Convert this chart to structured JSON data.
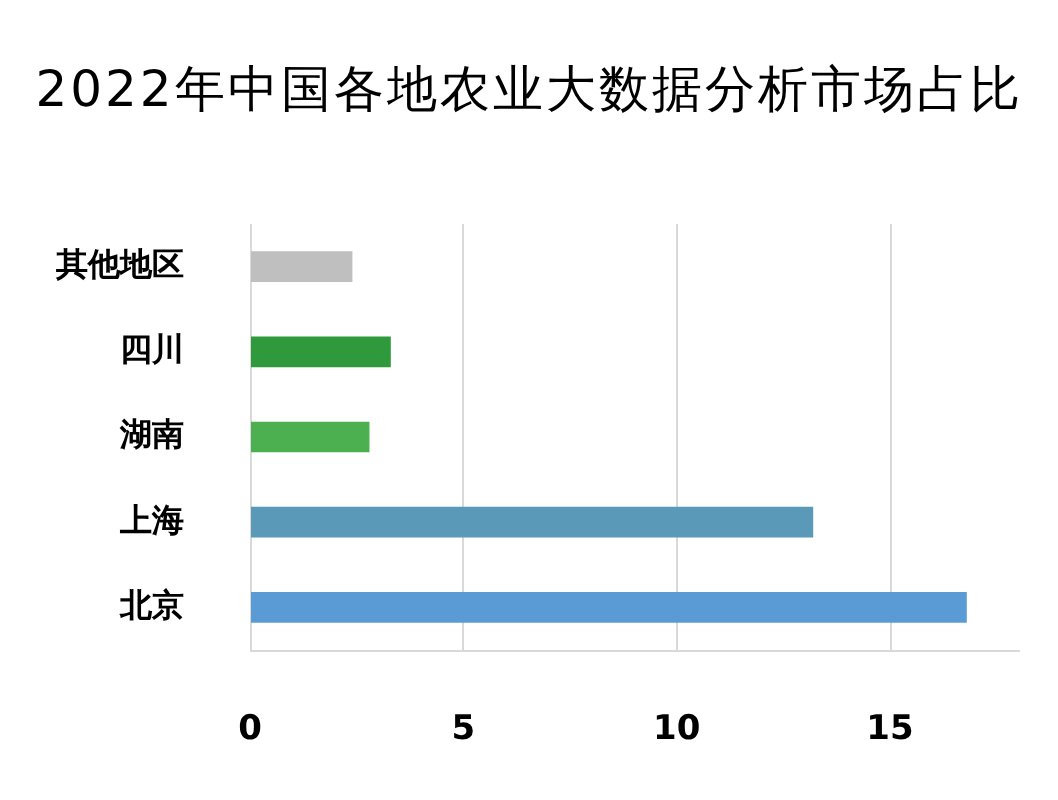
{
  "chart_data": {
    "type": "bar",
    "title": "2022年中国各地农业大数据分析市场占比",
    "orientation": "horizontal",
    "categories": [
      "其他地区",
      "四川",
      "湖南",
      "上海",
      "北京"
    ],
    "values": [
      2.4,
      3.3,
      2.8,
      13.2,
      16.8
    ],
    "colors": [
      "#bfbfbf",
      "#2f9a3c",
      "#4db050",
      "#5a9ab8",
      "#5b9bd5"
    ],
    "xlim": [
      0,
      18
    ],
    "xticks": [
      0,
      5,
      10,
      15
    ],
    "grid": "x"
  }
}
